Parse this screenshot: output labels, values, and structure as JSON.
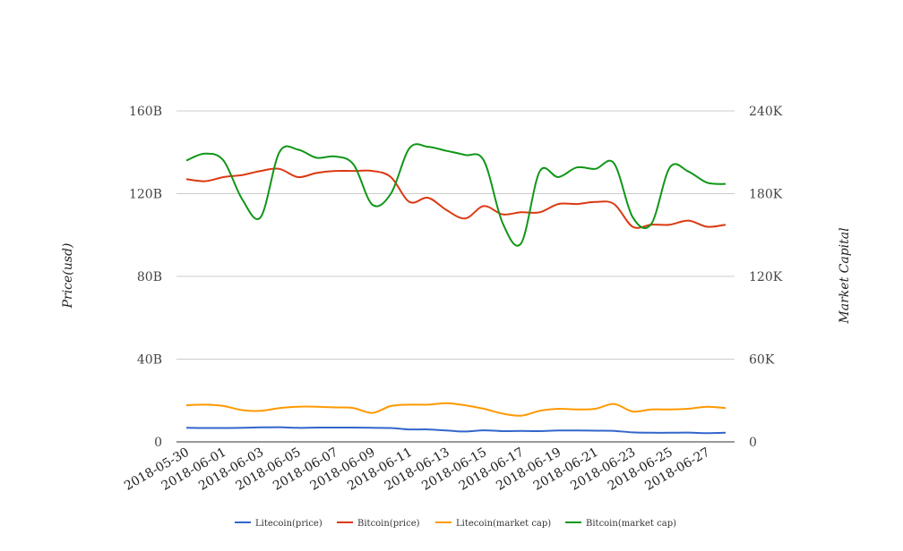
{
  "chart_data": {
    "type": "line",
    "title": "",
    "x": [
      "2018-05-30",
      "2018-05-31",
      "2018-06-01",
      "2018-06-02",
      "2018-06-03",
      "2018-06-04",
      "2018-06-05",
      "2018-06-06",
      "2018-06-07",
      "2018-06-08",
      "2018-06-09",
      "2018-06-10",
      "2018-06-11",
      "2018-06-12",
      "2018-06-13",
      "2018-06-14",
      "2018-06-15",
      "2018-06-16",
      "2018-06-17",
      "2018-06-18",
      "2018-06-19",
      "2018-06-20",
      "2018-06-21",
      "2018-06-22",
      "2018-06-23",
      "2018-06-24",
      "2018-06-25",
      "2018-06-26",
      "2018-06-27",
      "2018-06-28"
    ],
    "x_tick_labels": [
      "2018-05-30",
      "2018-06-01",
      "2018-06-03",
      "2018-06-05",
      "2018-06-07",
      "2018-06-09",
      "2018-06-11",
      "2018-06-13",
      "2018-06-15",
      "2018-06-17",
      "2018-06-19",
      "2018-06-21",
      "2018-06-23",
      "2018-06-25",
      "2018-06-27"
    ],
    "y_left": {
      "label": "Price(usd)",
      "ylim": [
        0,
        160
      ],
      "ticks": [
        "0",
        "40B",
        "80B",
        "120B",
        "160B"
      ]
    },
    "y_right": {
      "label": "Market Capital",
      "ylim": [
        0,
        240
      ],
      "ticks": [
        "0",
        "60K",
        "120K",
        "180K",
        "240K"
      ]
    },
    "grid": true,
    "legend_position": "bottom",
    "series": [
      {
        "name": "Litecoin(price)",
        "axis": "left",
        "color": "#3366cc",
        "values": [
          6.8,
          6.7,
          6.7,
          6.8,
          7.0,
          7.1,
          6.8,
          6.9,
          6.9,
          6.9,
          6.8,
          6.7,
          6.0,
          6.0,
          5.5,
          5.0,
          5.6,
          5.2,
          5.3,
          5.2,
          5.5,
          5.5,
          5.4,
          5.3,
          4.6,
          4.4,
          4.4,
          4.5,
          4.2,
          4.4
        ]
      },
      {
        "name": "Bitcoin(price)",
        "axis": "left",
        "color": "#dc3912",
        "values": [
          127,
          126,
          128,
          129,
          131,
          132,
          128,
          130,
          131,
          131,
          131,
          128,
          116,
          118,
          112,
          108,
          114,
          110,
          111,
          111,
          115,
          115,
          116,
          115,
          104,
          105,
          105,
          107,
          104,
          105
        ]
      },
      {
        "name": "Litecoin(market cap)",
        "axis": "right",
        "color": "#ff9900",
        "values": [
          26.5,
          27.0,
          26.0,
          23.0,
          22.5,
          24.5,
          25.5,
          25.5,
          25.0,
          24.5,
          21.0,
          26.0,
          27.0,
          27.0,
          28.0,
          26.5,
          24.0,
          20.5,
          19.0,
          22.5,
          24.0,
          23.5,
          24.0,
          27.5,
          22.0,
          23.5,
          23.5,
          24.0,
          25.5,
          24.5
        ]
      },
      {
        "name": "Bitcoin(market cap)",
        "axis": "right",
        "color": "#109618",
        "values": [
          204,
          209,
          204,
          176,
          163,
          210,
          212,
          206,
          207,
          201,
          172,
          180,
          213,
          214,
          211,
          208,
          204,
          159,
          144,
          196,
          192,
          199,
          198,
          202,
          163,
          158,
          199,
          196,
          188,
          187
        ]
      }
    ]
  }
}
